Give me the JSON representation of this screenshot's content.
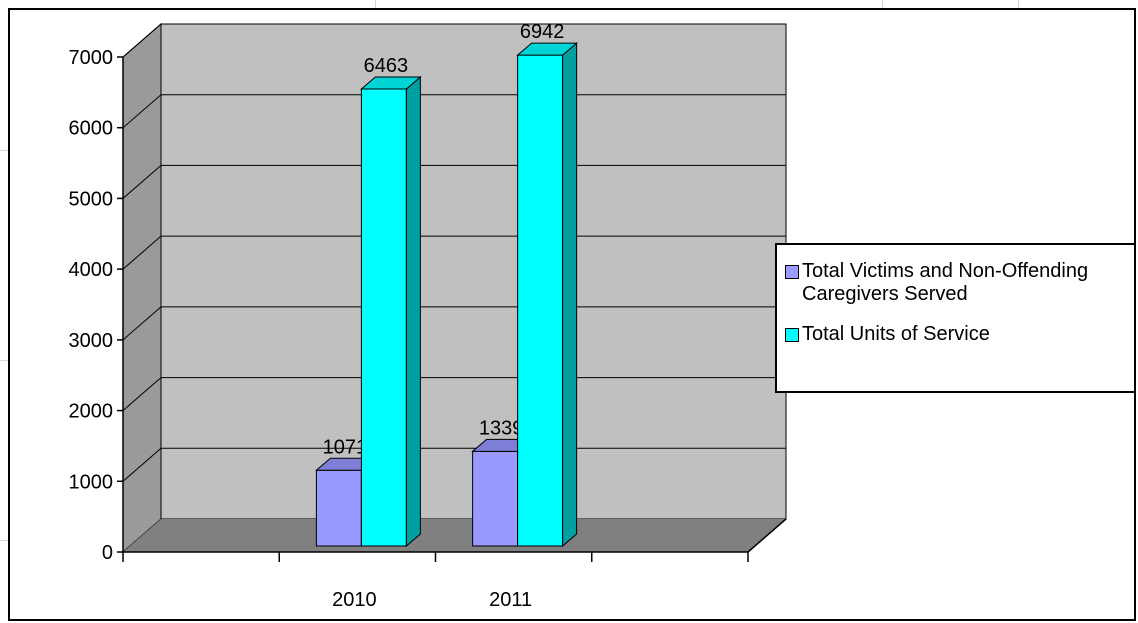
{
  "chart_data": {
    "type": "bar",
    "categories": [
      "2010",
      "2011"
    ],
    "series": [
      {
        "name": "Total Victims and Non-Offending Caregivers Served",
        "values": [
          1071,
          1339
        ],
        "color": "#9999ff",
        "side_color": "#6b6bb8",
        "top_color": "#7e7ed6"
      },
      {
        "name": "Total Units of Service",
        "values": [
          6463,
          6942
        ],
        "color": "#00ffff",
        "side_color": "#00a0a0",
        "top_color": "#00d4d4"
      }
    ],
    "data_labels": [
      [
        "1071",
        "1339"
      ],
      [
        "6463",
        "6942"
      ]
    ],
    "y_ticks": [
      "0",
      "1000",
      "2000",
      "3000",
      "4000",
      "5000",
      "6000",
      "7000"
    ],
    "ylim": [
      0,
      7000
    ],
    "title": "",
    "xlabel": "",
    "ylabel": "",
    "grid": true,
    "view": "3d",
    "wall_color": "#c0c0c0",
    "floor_color": "#808080",
    "legend_position": "right"
  }
}
